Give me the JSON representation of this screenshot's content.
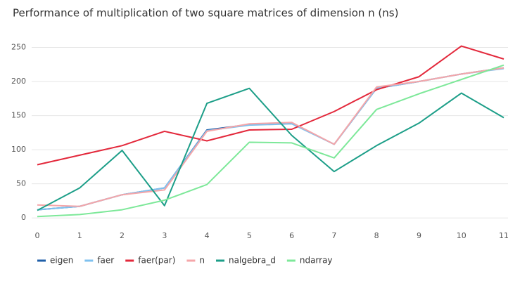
{
  "chart_data": {
    "type": "line",
    "title": "Performance of multiplication of two square matrices of dimension n (ns)",
    "x": [
      0,
      1,
      2,
      3,
      4,
      5,
      6,
      7,
      8,
      9,
      10,
      11
    ],
    "xlim": [
      0,
      11
    ],
    "xticks": [
      0,
      1,
      2,
      3,
      4,
      5,
      6,
      7,
      8,
      9,
      10,
      11
    ],
    "ylim": [
      -8,
      268
    ],
    "yticks": [
      0,
      50,
      100,
      150,
      200,
      250
    ],
    "grid": true,
    "legend": "bottom",
    "series": [
      {
        "name": "eigen",
        "color": "#1f5fa8",
        "values": [
          12,
          17,
          34,
          44,
          129,
          137,
          139,
          108,
          190,
          200,
          211,
          220
        ]
      },
      {
        "name": "faer",
        "color": "#7fc1ef",
        "values": [
          12,
          17,
          34,
          44,
          128,
          136,
          138,
          108,
          190,
          200,
          211,
          219
        ]
      },
      {
        "name": "faer(par)",
        "color": "#e3283b",
        "values": [
          78,
          92,
          106,
          127,
          113,
          129,
          130,
          156,
          188,
          207,
          252,
          233
        ]
      },
      {
        "name": "n",
        "color": "#f5a6a9",
        "values": [
          19,
          17,
          34,
          41,
          127,
          138,
          140,
          108,
          192,
          200,
          211,
          220
        ]
      },
      {
        "name": "nalgebra_d",
        "color": "#1c9e88",
        "values": [
          11,
          44,
          99,
          18,
          168,
          190,
          121,
          68,
          106,
          139,
          183,
          147
        ]
      },
      {
        "name": "ndarray",
        "color": "#7de899",
        "values": [
          2,
          5,
          12,
          26,
          49,
          111,
          110,
          88,
          159,
          182,
          203,
          224
        ]
      }
    ]
  }
}
